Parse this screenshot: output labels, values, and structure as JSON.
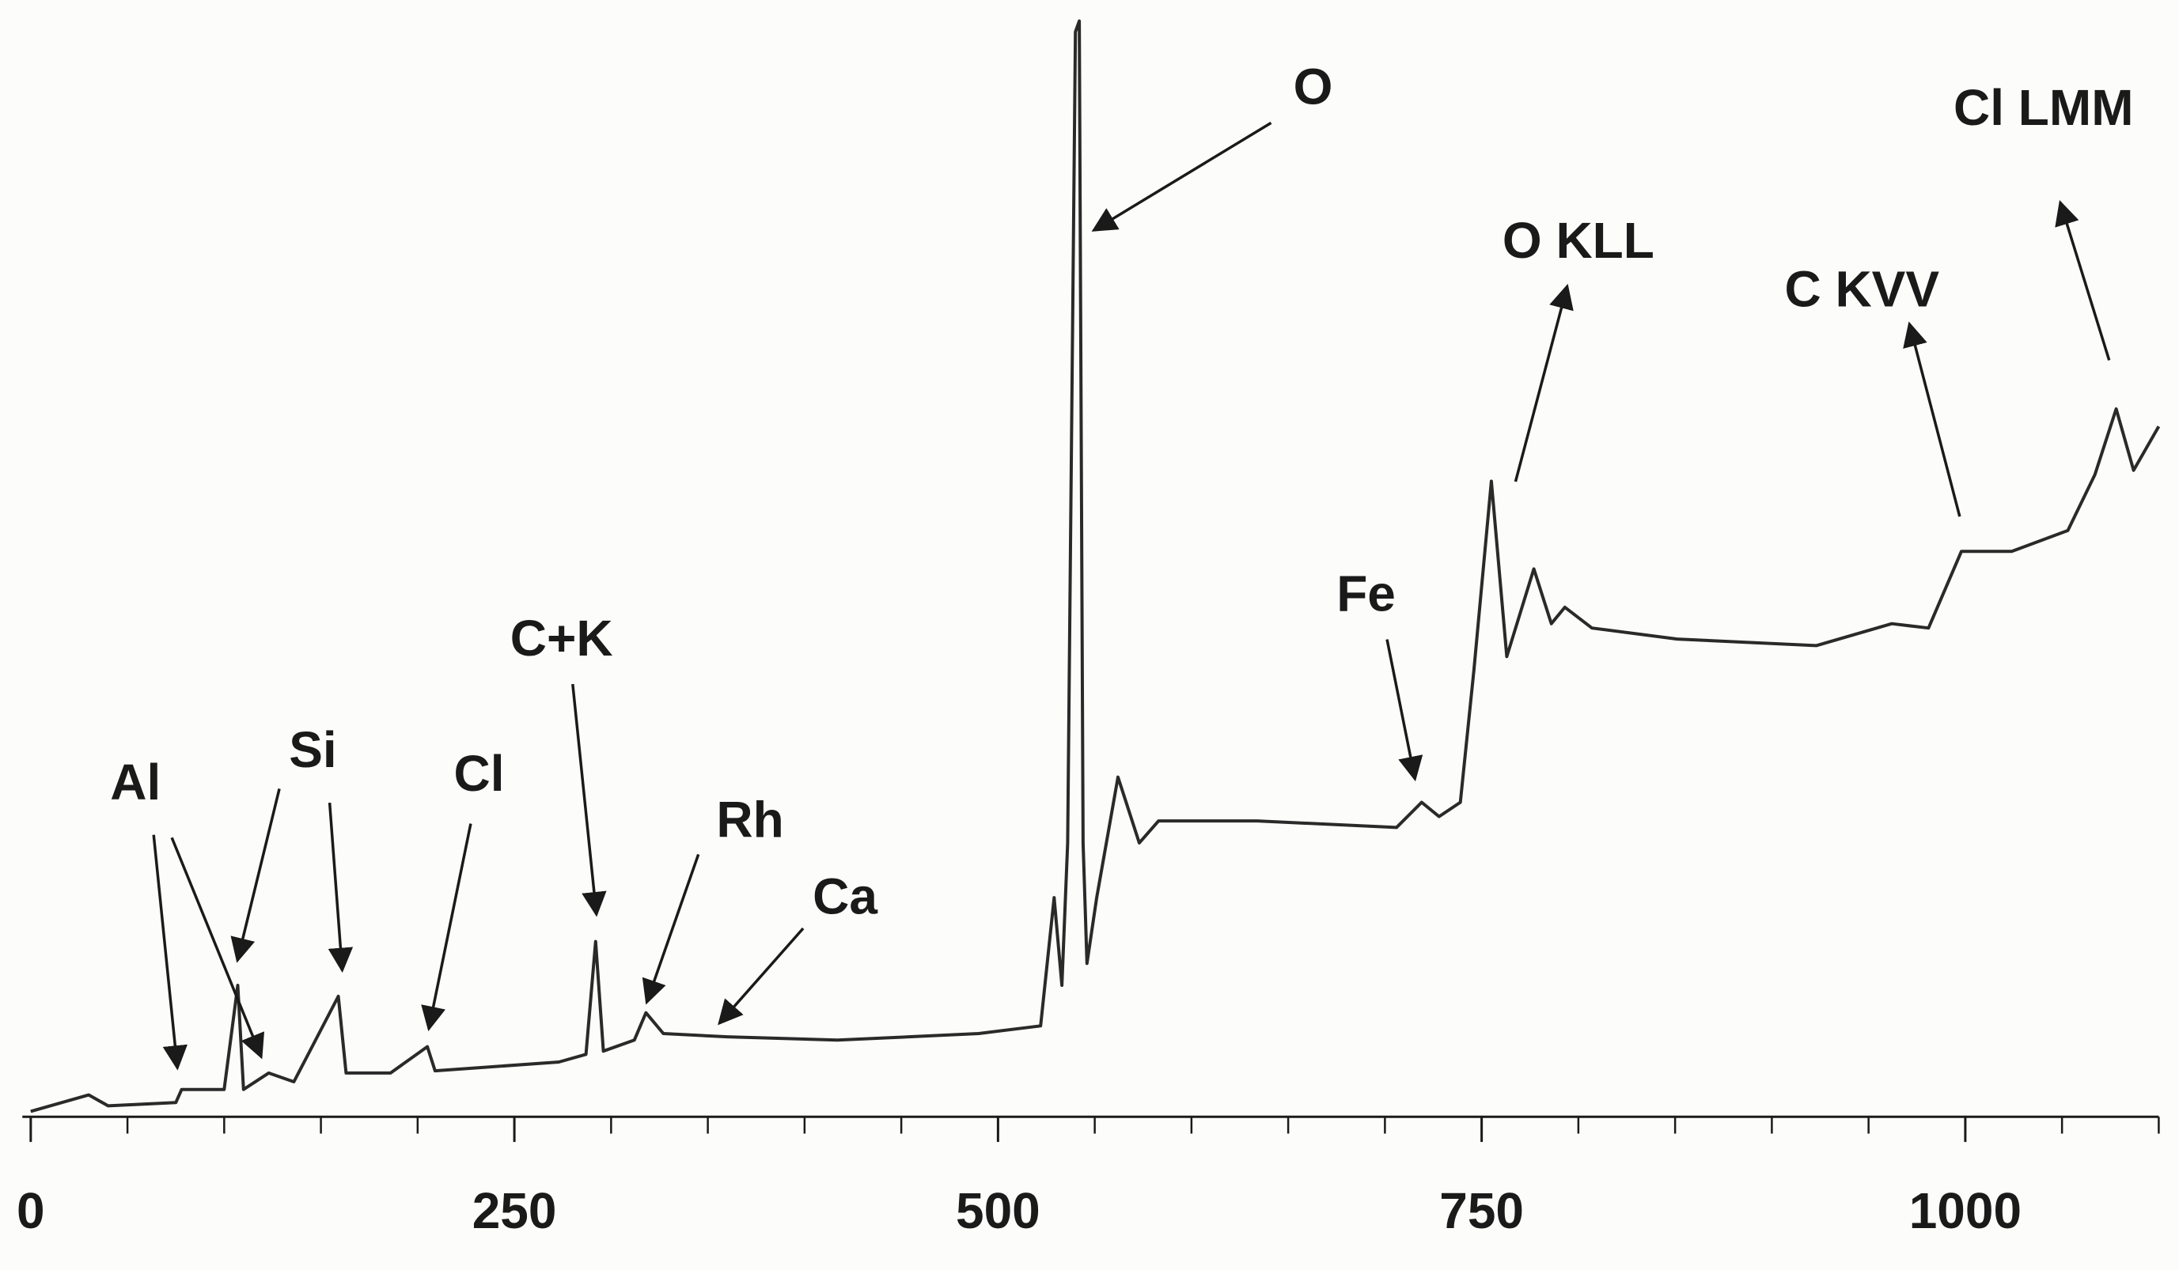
{
  "chart_data": {
    "type": "line",
    "color": "#2a2a2a",
    "annotations": [
      "O",
      "Cl LMM",
      "O KLL",
      "C KVV",
      "Fe",
      "C+K",
      "Rh",
      "Ca",
      "Cl",
      "Si",
      "Al"
    ],
    "x": [
      0,
      30,
      40,
      75,
      78,
      100,
      107,
      110,
      123,
      136,
      159,
      163,
      186,
      205,
      209,
      273,
      287,
      292,
      296,
      312,
      318,
      327,
      360,
      417,
      490,
      522,
      529,
      533,
      536,
      540,
      542,
      544,
      546,
      551,
      562,
      573,
      583,
      634,
      706,
      719,
      728,
      739,
      746,
      755,
      763,
      777,
      786,
      793,
      807,
      851,
      923,
      962,
      981,
      998,
      1024,
      1053,
      1067,
      1078,
      1087,
      1100
    ],
    "values": [
      0.5,
      2,
      1,
      1.3,
      2.5,
      2.5,
      12,
      2.5,
      4,
      3.2,
      11,
      4,
      4,
      6.4,
      4.2,
      5,
      5.7,
      16,
      6,
      7,
      9.5,
      7.6,
      7.3,
      7,
      7.6,
      8.3,
      20,
      12,
      25,
      99,
      100,
      25,
      14,
      20,
      31,
      25,
      27,
      27,
      26.4,
      28.7,
      27.4,
      28.7,
      40.8,
      58,
      42,
      50,
      45,
      46.5,
      44.6,
      43.6,
      43,
      45,
      44.6,
      51.6,
      51.6,
      53.5,
      58.6,
      64.6,
      59,
      63
    ],
    "xlim": [
      0,
      1100
    ],
    "ylim": [
      0,
      100
    ],
    "xticks": [
      0,
      250,
      500,
      750,
      1000
    ]
  }
}
